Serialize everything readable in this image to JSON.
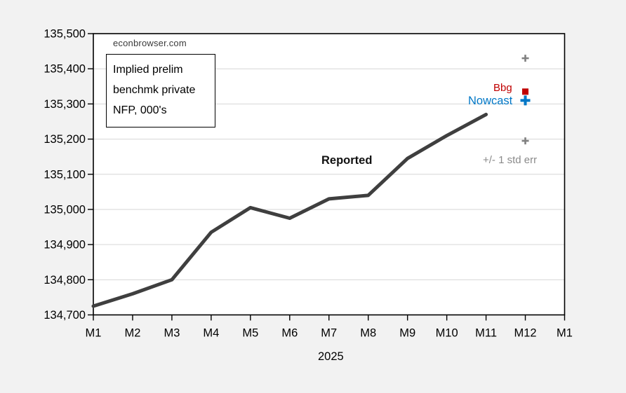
{
  "watermark": "econbrowser.com",
  "annotation_box": {
    "lines": [
      "Implied prelim",
      "benchmk private",
      "NFP, 000's"
    ]
  },
  "labels": {
    "reported": "Reported",
    "bbg": "Bbg",
    "nowcast": "Nowcast",
    "std_err": "+/- 1 std err",
    "year": "2025"
  },
  "colors": {
    "page_bg": "#f2f2f2",
    "plot_bg": "#ffffff",
    "grid": "#d6d6d6",
    "axis": "#000000",
    "reported_line": "#3f3f3f",
    "bbg": "#c00000",
    "nowcast": "#0077c6",
    "std_err_marker": "#808080",
    "std_err_text": "#8a8a8a",
    "tick_label": "#000000"
  },
  "chart_data": {
    "type": "line",
    "title": "Implied prelim benchmk private NFP, 000's",
    "xlabel": "2025",
    "ylabel": "",
    "x_tick_labels": [
      "M1",
      "M2",
      "M3",
      "M4",
      "M5",
      "M6",
      "M7",
      "M8",
      "M9",
      "M10",
      "M11",
      "M12",
      "M1"
    ],
    "y_ticks": [
      134700,
      134800,
      134900,
      135000,
      135100,
      135200,
      135300,
      135400,
      135500
    ],
    "y_tick_labels": [
      "134,700",
      "134,800",
      "134,900",
      "135,000",
      "135,100",
      "135,200",
      "135,300",
      "135,400",
      "135,500"
    ],
    "ylim": [
      134700,
      135500
    ],
    "grid": "horizontal",
    "legend_position": "none",
    "series": [
      {
        "name": "Reported",
        "marker": "none",
        "style": "line",
        "color_key": "reported_line",
        "x_index": [
          0,
          1,
          2,
          3,
          4,
          5,
          6,
          7,
          8,
          9,
          10
        ],
        "values": [
          134725,
          134760,
          134800,
          134935,
          135005,
          134975,
          135030,
          135040,
          135145,
          135210,
          135270
        ]
      },
      {
        "name": "Bbg",
        "marker": "square",
        "style": "marker",
        "color_key": "bbg",
        "x_index": [
          11
        ],
        "values": [
          135335
        ]
      },
      {
        "name": "Nowcast",
        "marker": "plus-large",
        "style": "marker",
        "color_key": "nowcast",
        "x_index": [
          11
        ],
        "values": [
          135310
        ]
      },
      {
        "name": "+/- 1 std err",
        "marker": "plus-small",
        "style": "marker",
        "color_key": "std_err_marker",
        "x_index": [
          11,
          11
        ],
        "values": [
          135430,
          135195
        ]
      }
    ]
  }
}
